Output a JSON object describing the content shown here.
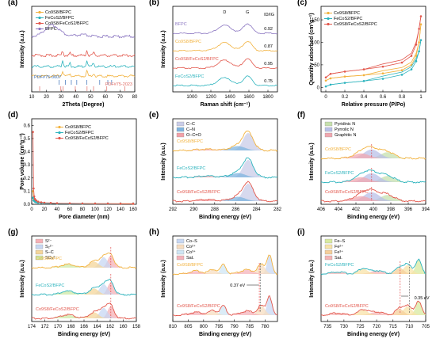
{
  "colors": {
    "co9s8": "#f2b23e",
    "fecos2": "#2bb3bd",
    "composite": "#e2574c",
    "bfpc": "#8b76c1",
    "ref1": "#3a6fb7",
    "ref2": "#e06a62",
    "cc": "#c9cce8",
    "cn": "#7fb4df",
    "occ": "#f2a1a8",
    "pyridinic": "#c6e0ad",
    "pyrrolic": "#b9c0e8",
    "graphitic": "#f1a8b0",
    "s2m": "#f6b0b6",
    "s22m": "#c7d7f3",
    "sc": "#f4d59a",
    "so4": "#cde8a6",
    "cos": "#c7d7f3",
    "co2": "#f7ddc0",
    "co3": "#cfe5f4",
    "sat": "#f4b3bb",
    "fes": "#d8eaa0",
    "fe2": "#f8e3a8",
    "fe3": "#f5cf9a",
    "fesat": "#f5b5b5"
  },
  "panels": [
    {
      "letter": "(a)",
      "chart_data": {
        "type": "line",
        "xlabel": "2Theta (Degree)",
        "ylabel": "Intensity (a.u.)",
        "x_ticks": [
          10,
          20,
          30,
          40,
          50,
          60,
          70,
          80
        ],
        "xlim": [
          10,
          80
        ],
        "legend": [
          "Co9S8/BFPC",
          "FeCoS2/BFPC",
          "Co9S8/FeCoS2/BFPC",
          "BFPC"
        ],
        "annotations": [
          "PDF#75-0607",
          "PDF#75-2023"
        ],
        "ref_lines_top": [
          28.6,
          32.9,
          36.9,
          40.6,
          47.4,
          56.2,
          61.7,
          64.3
        ],
        "ref_lines_bottom": [
          15.4,
          29.8,
          31.2,
          39.6,
          47.6,
          52.0,
          61.0,
          73.3
        ]
      }
    },
    {
      "letter": "(b)",
      "chart_data": {
        "type": "line",
        "xlabel": "Raman shift (cm⁻¹)",
        "ylabel": "Intensity (a.u.)",
        "x_ticks": [
          1000,
          1200,
          1400,
          1600,
          1800
        ],
        "xlim": [
          800,
          1900
        ],
        "peaks": [
          "D",
          "G"
        ],
        "ratio_header": "ID/IG",
        "rows": [
          {
            "name": "BFPC",
            "ratio": "0.92"
          },
          {
            "name": "Co9S8/BFPC",
            "ratio": "0.87"
          },
          {
            "name": "Co9S8/FeCoS2/BFPC",
            "ratio": "0.95"
          },
          {
            "name": "FeCoS2/BFPC",
            "ratio": "0.75"
          }
        ]
      }
    },
    {
      "letter": "(c)",
      "chart_data": {
        "type": "line",
        "xlabel": "Relative pressure (P/Po)",
        "ylabel": "Quantity adsorbed (cm³g⁻¹)",
        "x_ticks": [
          0.0,
          0.2,
          0.4,
          0.6,
          0.8,
          1.0
        ],
        "y_ticks": [
          0,
          50,
          100,
          150
        ],
        "xlim": [
          -0.05,
          1.05
        ],
        "ylim": [
          -10,
          180
        ],
        "legend": [
          "Co9S8/BFPC",
          "FeCoS2/BFPC",
          "Co9S8/FeCoS2/BFPC"
        ],
        "series": [
          {
            "name": "Co9S8/BFPC",
            "x": [
              0.0,
              0.05,
              0.2,
              0.4,
              0.6,
              0.8,
              0.9,
              0.95,
              0.98,
              1.0
            ],
            "y": [
              15,
              20,
              24,
              27,
              31,
              38,
              50,
              70,
              100,
              140
            ]
          },
          {
            "name": "FeCoS2/BFPC",
            "x": [
              0.0,
              0.05,
              0.2,
              0.4,
              0.6,
              0.8,
              0.9,
              0.95,
              0.98,
              1.0
            ],
            "y": [
              2,
              6,
              10,
              14,
              19,
              28,
              40,
              58,
              80,
              105
            ]
          },
          {
            "name": "Co9S8/FeCoS2/BFPC",
            "x": [
              0.0,
              0.05,
              0.2,
              0.4,
              0.6,
              0.8,
              0.9,
              0.95,
              0.98,
              1.0
            ],
            "y": [
              22,
              30,
              35,
              40,
              46,
              55,
              70,
              95,
              130,
              158
            ]
          }
        ]
      }
    },
    {
      "letter": "(d)",
      "chart_data": {
        "type": "line",
        "xlabel": "Pore diameter (nm)",
        "ylabel": "Pore volume (cm³g⁻¹)",
        "x_ticks": [
          0,
          20,
          40,
          60,
          80,
          100,
          120,
          140,
          160
        ],
        "y_ticks": [
          0.0,
          0.1,
          0.2,
          0.3,
          0.4,
          0.5,
          0.6
        ],
        "xlim": [
          0,
          165
        ],
        "ylim": [
          0,
          0.65
        ],
        "legend": [
          "Co9S8/BFPC",
          "FeCoS2/BFPC",
          "Co9S8/FeCoS2/BFPC"
        ],
        "series": [
          {
            "name": "Co9S8/BFPC",
            "x": [
              2,
              3,
              4,
              5,
              7,
              10,
              15,
              20,
              30,
              40,
              60,
              80,
              100,
              120,
              140,
              160
            ],
            "y": [
              0.1,
              0.05,
              0.04,
              0.03,
              0.022,
              0.015,
              0.012,
              0.01,
              0.008,
              0.007,
              0.006,
              0.005,
              0.005,
              0.004,
              0.004,
              0.004
            ]
          },
          {
            "name": "FeCoS2/BFPC",
            "x": [
              2,
              3,
              4,
              5,
              7,
              10,
              15,
              20,
              30,
              40,
              60,
              80,
              100,
              120,
              140
            ],
            "y": [
              0.05,
              0.03,
              0.025,
              0.02,
              0.015,
              0.012,
              0.01,
              0.008,
              0.006,
              0.005,
              0.004,
              0.004,
              0.003,
              0.003,
              0.003
            ]
          },
          {
            "name": "Co9S8/FeCoS2/BFPC",
            "x": [
              2,
              3,
              4,
              5,
              7,
              10,
              15,
              20,
              30,
              40,
              60,
              80,
              100,
              120,
              140,
              160
            ],
            "y": [
              0.55,
              0.12,
              0.06,
              0.04,
              0.03,
              0.02,
              0.015,
              0.012,
              0.01,
              0.008,
              0.007,
              0.006,
              0.005,
              0.005,
              0.004,
              0.004
            ]
          }
        ]
      }
    },
    {
      "letter": "(e)",
      "chart_data": {
        "type": "line",
        "xlabel": "Binding energy (eV)",
        "ylabel": "Intensity (a.u.)",
        "x_ticks": [
          292,
          290,
          288,
          286,
          284,
          282
        ],
        "xlim": [
          292,
          282
        ],
        "legend": [
          "C–C",
          "C–N",
          "O–C=O"
        ],
        "samples": [
          "Co9S8/BFPC",
          "FeCoS2/BFPC",
          "Co9S8/FeCoS2/BFPC"
        ]
      }
    },
    {
      "letter": "(f)",
      "chart_data": {
        "type": "line",
        "xlabel": "Binding energy (eV)",
        "ylabel": "Intensity (a.u.)",
        "x_ticks": [
          406,
          404,
          402,
          400,
          398,
          396,
          394
        ],
        "xlim": [
          406,
          394
        ],
        "legend": [
          "Pyridinic N",
          "Pyrrolic N",
          "Graphitic N"
        ],
        "samples": [
          "Co9S8/BFPC",
          "FeCoS2/BFPC",
          "Co9S8/FeCoS2/BFPC"
        ]
      }
    },
    {
      "letter": "(g)",
      "chart_data": {
        "type": "line",
        "xlabel": "Binding energy (eV)",
        "ylabel": "Intensity (a.u.)",
        "x_ticks": [
          174,
          172,
          170,
          168,
          166,
          164,
          162,
          160,
          158
        ],
        "xlim": [
          174,
          158
        ],
        "legend": [
          "S²⁻",
          "S₂²⁻",
          "S–C",
          "SO₄²⁻"
        ],
        "samples": [
          "Co9S8/BFPC",
          "FeCoS2/BFPC",
          "Co9S8/FeCoS2/BFPC"
        ]
      }
    },
    {
      "letter": "(h)",
      "chart_data": {
        "type": "line",
        "xlabel": "Binding energy (eV)",
        "ylabel": "Intensity (a.u.)",
        "x_ticks": [
          810,
          805,
          800,
          795,
          790,
          785,
          780
        ],
        "xlim": [
          810,
          776
        ],
        "legend": [
          "Co–S",
          "Co²⁺",
          "Co³⁺",
          "Sat."
        ],
        "annotations": [
          "0.37 eV"
        ],
        "samples": [
          "Co9S8/BFPC",
          "Co9S8/FeCoS2/BFPC"
        ]
      }
    },
    {
      "letter": "(i)",
      "chart_data": {
        "type": "line",
        "xlabel": "Binding energy (eV)",
        "ylabel": "Intensity (a.u.)",
        "x_ticks": [
          735,
          730,
          725,
          720,
          715,
          710,
          705
        ],
        "xlim": [
          737,
          705
        ],
        "legend": [
          "Fe–S",
          "Fe²⁺",
          "Fe³⁺",
          "Sat."
        ],
        "annotations": [
          "0.35 eV"
        ],
        "samples": [
          "FeCoS2/BFPC",
          "Co9S8/FeCoS2/BFPC"
        ]
      }
    }
  ]
}
